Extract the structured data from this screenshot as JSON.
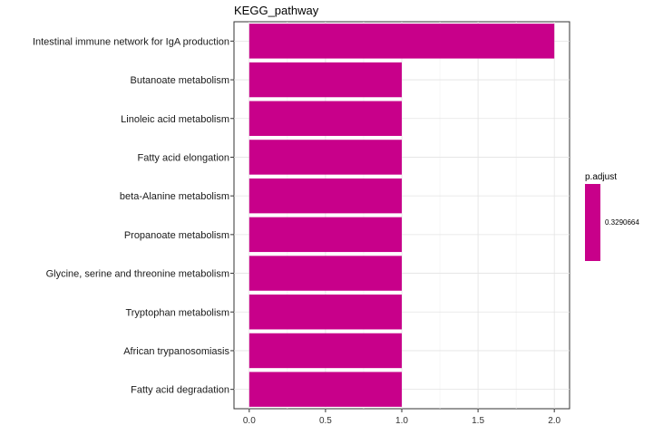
{
  "chart_data": {
    "type": "bar",
    "orientation": "horizontal",
    "title": "KEGG_pathway",
    "categories": [
      "Intestinal immune network for IgA production",
      "Butanoate metabolism",
      "Linoleic acid metabolism",
      "Fatty acid elongation",
      "beta-Alanine metabolism",
      "Propanoate metabolism",
      "Glycine, serine and threonine metabolism",
      "Tryptophan metabolism",
      "African trypanosomiasis",
      "Fatty acid degradation"
    ],
    "values": [
      2,
      1,
      1,
      1,
      1,
      1,
      1,
      1,
      1,
      1
    ],
    "xlim": [
      -0.1,
      2.1
    ],
    "xticks": [
      0,
      0.5,
      1,
      1.5,
      2
    ],
    "xtick_labels": [
      "0.0",
      "0.5",
      "1.0",
      "1.5",
      "2.0"
    ],
    "grid": true,
    "bar_color": "#C8008A",
    "legend": {
      "title": "p.adjust",
      "placement": "right",
      "labels": [
        "0.3290664"
      ],
      "color": "#C8008A"
    }
  }
}
